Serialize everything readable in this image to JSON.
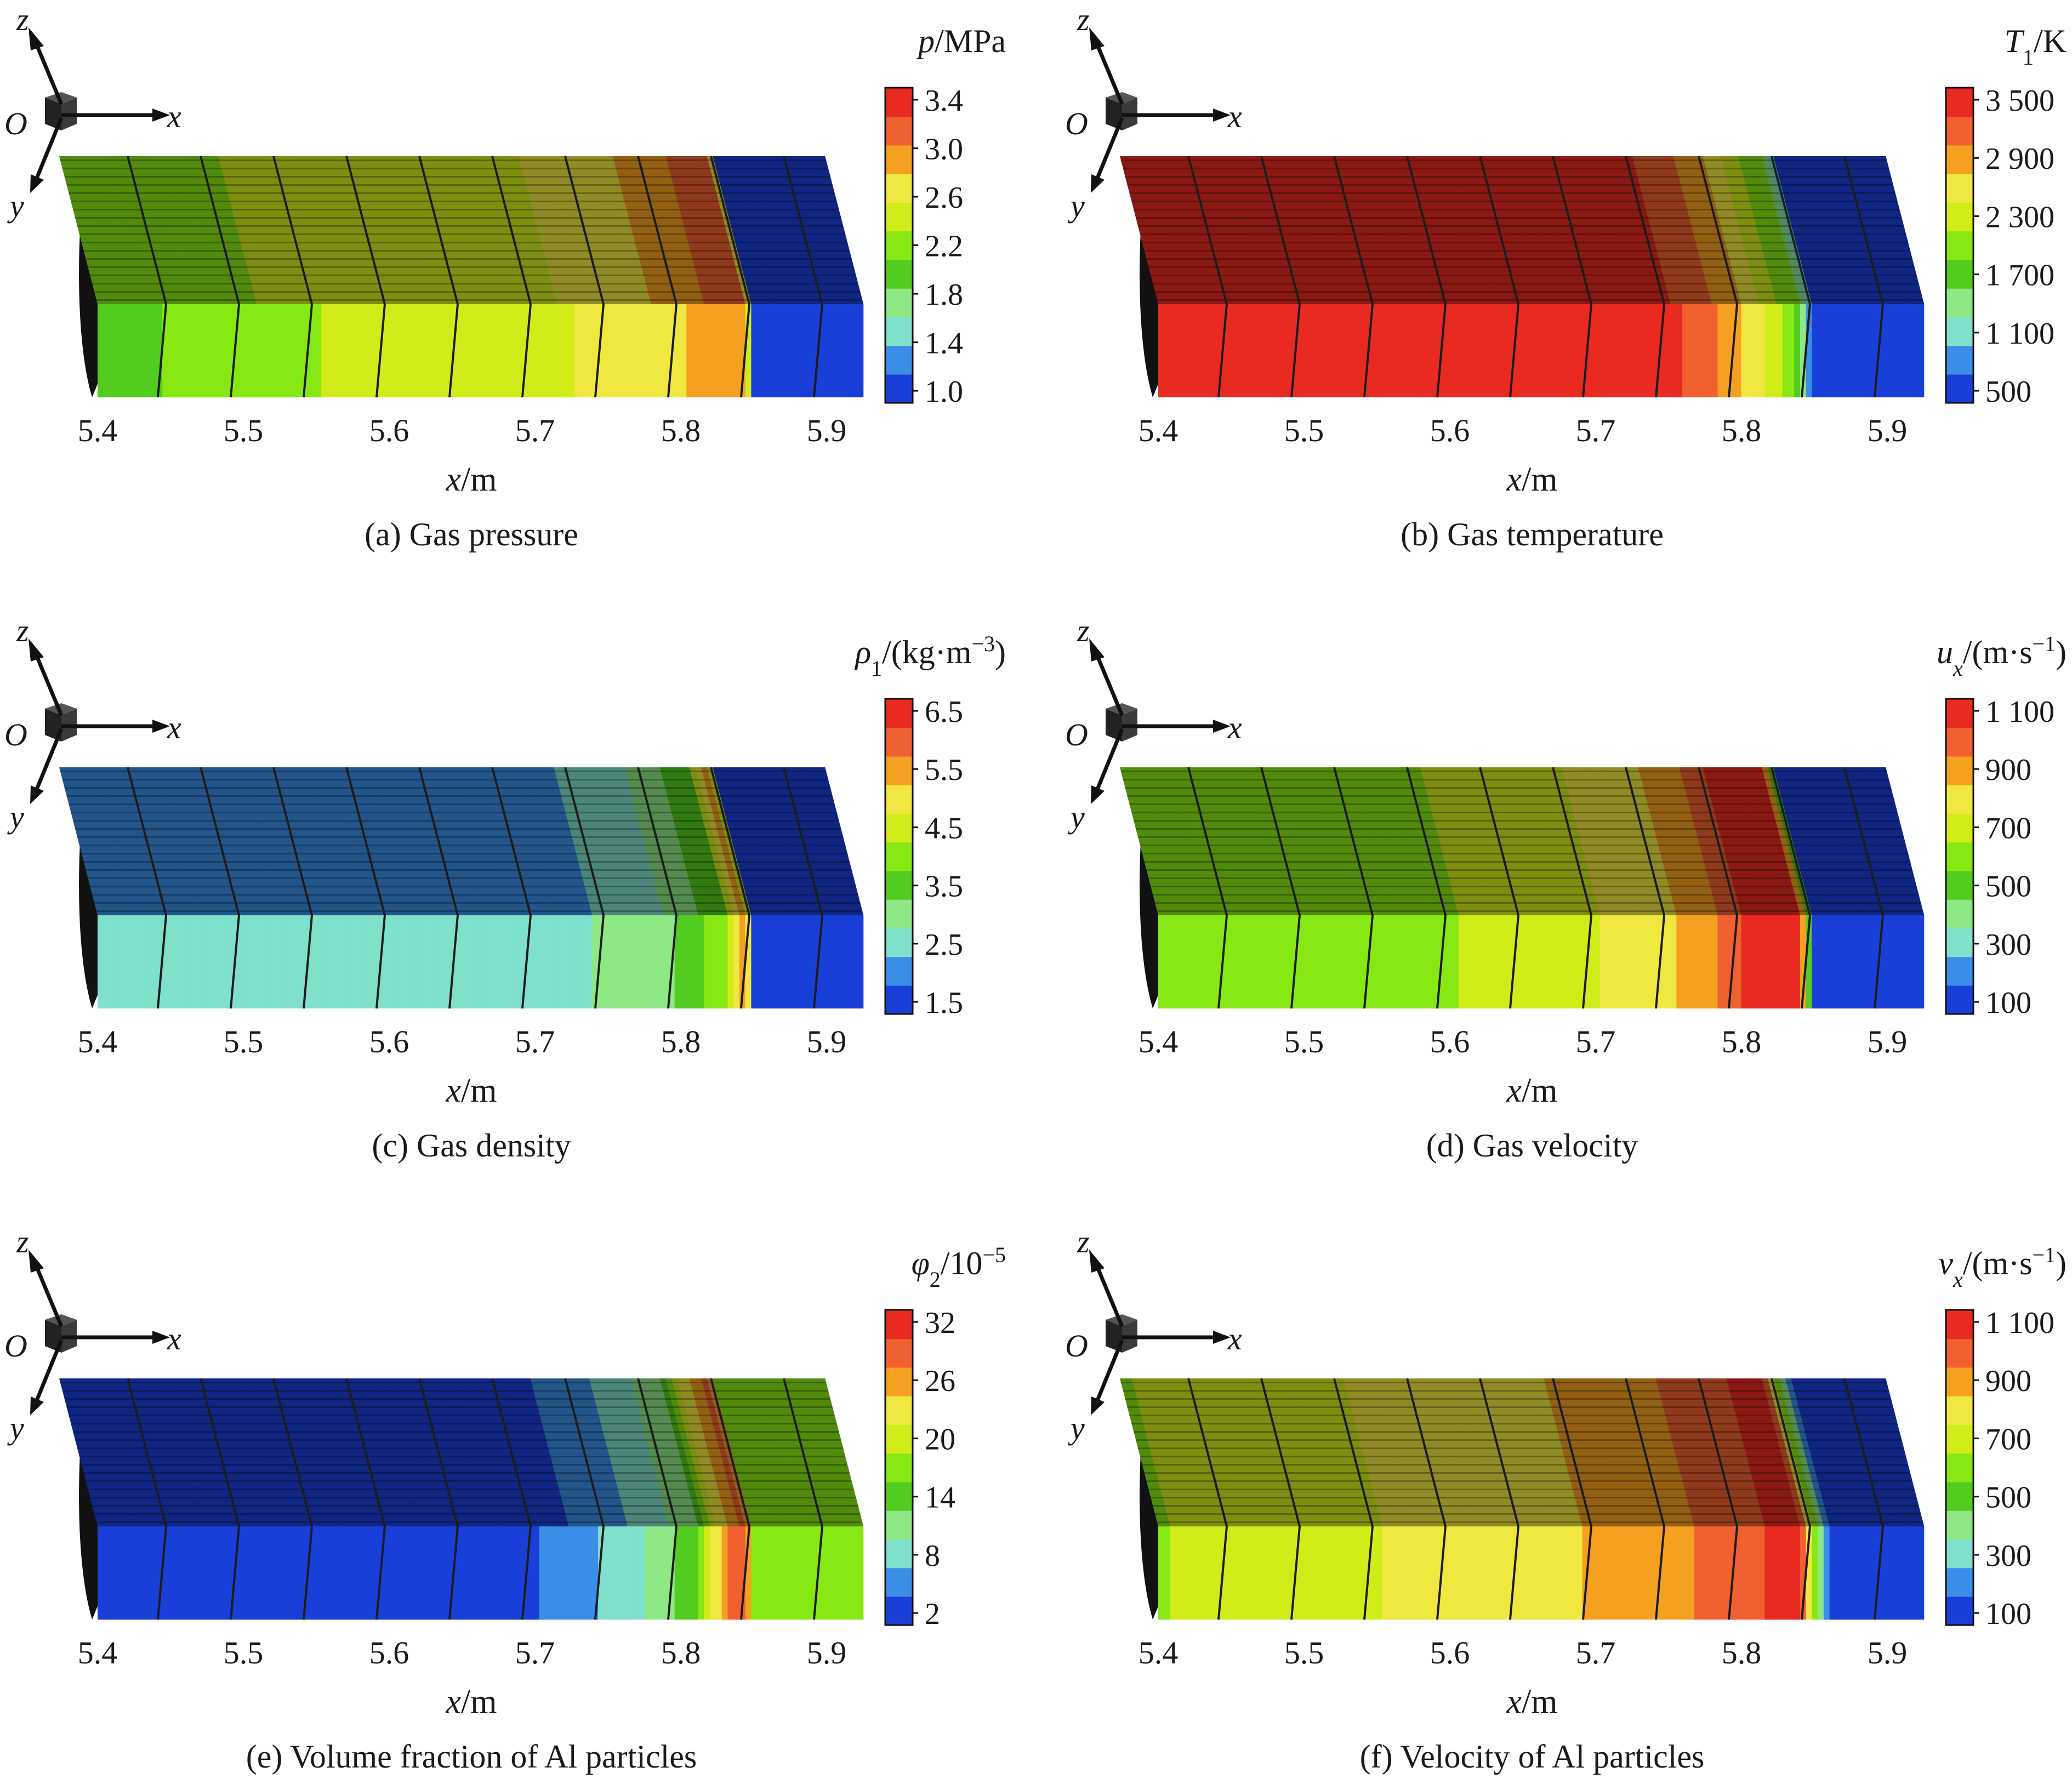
{
  "figure": {
    "colorbar_colors": [
      "#1a3fd8",
      "#3a8ee8",
      "#7fe0cc",
      "#8ee886",
      "#52cc1e",
      "#88e814",
      "#d2ec1a",
      "#f0e840",
      "#f5a020",
      "#f06030",
      "#e82a20"
    ],
    "triad_labels": {
      "z": "z",
      "x": "x",
      "y": "y",
      "o": "O"
    }
  },
  "chart_data": [
    {
      "type": "heatmap",
      "panel": "a",
      "caption": "(a) Gas pressure",
      "xlabel": "x/m",
      "xlim": [
        5.4,
        5.9
      ],
      "x_ticks": [
        "5.4",
        "5.5",
        "5.6",
        "5.7",
        "5.8",
        "5.9"
      ],
      "colorbar": {
        "title": "p/MPa",
        "ticks": [
          "3.4",
          "3.0",
          "2.6",
          "2.2",
          "1.8",
          "1.4",
          "1.0"
        ],
        "range": [
          1.0,
          3.4
        ]
      },
      "profile": {
        "x": [
          5.4,
          5.45,
          5.5,
          5.55,
          5.6,
          5.65,
          5.7,
          5.75,
          5.78,
          5.82,
          5.845,
          5.85,
          5.925
        ],
        "front_values": [
          2.0,
          2.1,
          2.2,
          2.3,
          2.4,
          2.45,
          2.5,
          2.55,
          2.65,
          2.8,
          2.95,
          1.0,
          1.0
        ],
        "top_values": [
          2.1,
          2.2,
          2.3,
          2.35,
          2.4,
          2.45,
          2.5,
          2.6,
          2.75,
          3.0,
          3.1,
          1.0,
          1.0
        ]
      }
    },
    {
      "type": "heatmap",
      "panel": "b",
      "caption": "(b) Gas temperature",
      "xlabel": "x/m",
      "xlim": [
        5.4,
        5.9
      ],
      "x_ticks": [
        "5.4",
        "5.5",
        "5.6",
        "5.7",
        "5.8",
        "5.9"
      ],
      "colorbar": {
        "title": "T1/K",
        "title_main": "T",
        "title_sub": "1",
        "title_unit": "/K",
        "ticks": [
          "3 500",
          "2 900",
          "2 300",
          "1 700",
          "1 100",
          "500"
        ],
        "range": [
          400,
          3800
        ]
      },
      "profile": {
        "x": [
          5.4,
          5.5,
          5.6,
          5.7,
          5.74,
          5.77,
          5.8,
          5.82,
          5.84,
          5.85,
          5.925
        ],
        "front_values": [
          3700,
          3700,
          3700,
          3700,
          3650,
          3400,
          2900,
          2500,
          1800,
          500,
          500
        ],
        "top_values": [
          3700,
          3700,
          3700,
          3700,
          3600,
          3300,
          2900,
          2400,
          1900,
          500,
          500
        ]
      }
    },
    {
      "type": "heatmap",
      "panel": "c",
      "caption": "(c) Gas density",
      "xlabel": "x/m",
      "xlim": [
        5.4,
        5.9
      ],
      "x_ticks": [
        "5.4",
        "5.5",
        "5.6",
        "5.7",
        "5.8",
        "5.9"
      ],
      "colorbar": {
        "title": "ρ1/(kg·m−3)",
        "title_main": "ρ",
        "title_sub": "1",
        "title_unit": "/(kg·m",
        "title_sup": "−3",
        "title_close": ")",
        "ticks": [
          "6.5",
          "5.5",
          "4.5",
          "3.5",
          "2.5",
          "1.5"
        ],
        "range": [
          1.2,
          7.0
        ]
      },
      "profile": {
        "x": [
          5.4,
          5.5,
          5.6,
          5.7,
          5.75,
          5.78,
          5.8,
          5.83,
          5.845,
          5.85,
          5.925
        ],
        "front_values": [
          2.4,
          2.5,
          2.6,
          2.7,
          2.8,
          3.0,
          3.4,
          4.2,
          6.2,
          1.5,
          1.5
        ],
        "top_values": [
          1.8,
          1.9,
          2.0,
          2.1,
          2.3,
          2.6,
          3.0,
          3.8,
          6.0,
          1.5,
          1.5
        ]
      }
    },
    {
      "type": "heatmap",
      "panel": "d",
      "caption": "(d) Gas velocity",
      "xlabel": "x/m",
      "xlim": [
        5.4,
        5.9
      ],
      "x_ticks": [
        "5.4",
        "5.5",
        "5.6",
        "5.7",
        "5.8",
        "5.9"
      ],
      "colorbar": {
        "title": "ux/(m·s−1)",
        "title_main": "u",
        "title_sub": "x",
        "title_unit": "/(m·s",
        "title_sup": "−1",
        "title_close": ")",
        "ticks": [
          "1 100",
          "900",
          "700",
          "500",
          "300",
          "100"
        ],
        "range": [
          0,
          1200
        ]
      },
      "profile": {
        "x": [
          5.4,
          5.5,
          5.6,
          5.65,
          5.7,
          5.75,
          5.78,
          5.8,
          5.84,
          5.85,
          5.925
        ],
        "front_values": [
          560,
          600,
          650,
          700,
          760,
          850,
          950,
          1100,
          1150,
          100,
          100
        ],
        "top_values": [
          560,
          600,
          650,
          700,
          760,
          850,
          950,
          1100,
          1150,
          100,
          100
        ]
      }
    },
    {
      "type": "heatmap",
      "panel": "e",
      "caption": "(e) Volume fraction of Al particles",
      "xlabel": "x/m",
      "xlim": [
        5.4,
        5.9
      ],
      "x_ticks": [
        "5.4",
        "5.5",
        "5.6",
        "5.7",
        "5.8",
        "5.9"
      ],
      "colorbar": {
        "title": "φ2/10−5",
        "title_main": "φ",
        "title_sub": "2",
        "title_unit": "/10",
        "title_sup": "−5",
        "title_close": "",
        "ticks": [
          "32",
          "26",
          "20",
          "14",
          "8",
          "2"
        ],
        "range": [
          0,
          35
        ]
      },
      "profile": {
        "x": [
          5.4,
          5.6,
          5.7,
          5.74,
          5.78,
          5.81,
          5.83,
          5.845,
          5.85,
          5.925
        ],
        "front_values": [
          2,
          2,
          3,
          6,
          10,
          15,
          28,
          32,
          17,
          17
        ],
        "top_values": [
          1,
          1,
          2,
          4,
          8,
          12,
          25,
          30,
          16,
          16
        ]
      }
    },
    {
      "type": "heatmap",
      "panel": "f",
      "caption": "(f) Velocity of Al particles",
      "xlabel": "x/m",
      "xlim": [
        5.4,
        5.9
      ],
      "x_ticks": [
        "5.4",
        "5.5",
        "5.6",
        "5.7",
        "5.8",
        "5.9"
      ],
      "colorbar": {
        "title": "vx/(m·s−1)",
        "title_main": "v",
        "title_sub": "x",
        "title_unit": "/(m·s",
        "title_sup": "−1",
        "title_close": ")",
        "ticks": [
          "1 100",
          "900",
          "700",
          "500",
          "300",
          "100"
        ],
        "range": [
          0,
          1200
        ]
      },
      "profile": {
        "x": [
          5.4,
          5.5,
          5.6,
          5.7,
          5.75,
          5.8,
          5.84,
          5.86,
          5.925
        ],
        "front_values": [
          650,
          720,
          800,
          880,
          950,
          1050,
          1150,
          100,
          100
        ],
        "top_values": [
          650,
          720,
          800,
          880,
          950,
          1050,
          1150,
          100,
          100
        ]
      }
    }
  ]
}
